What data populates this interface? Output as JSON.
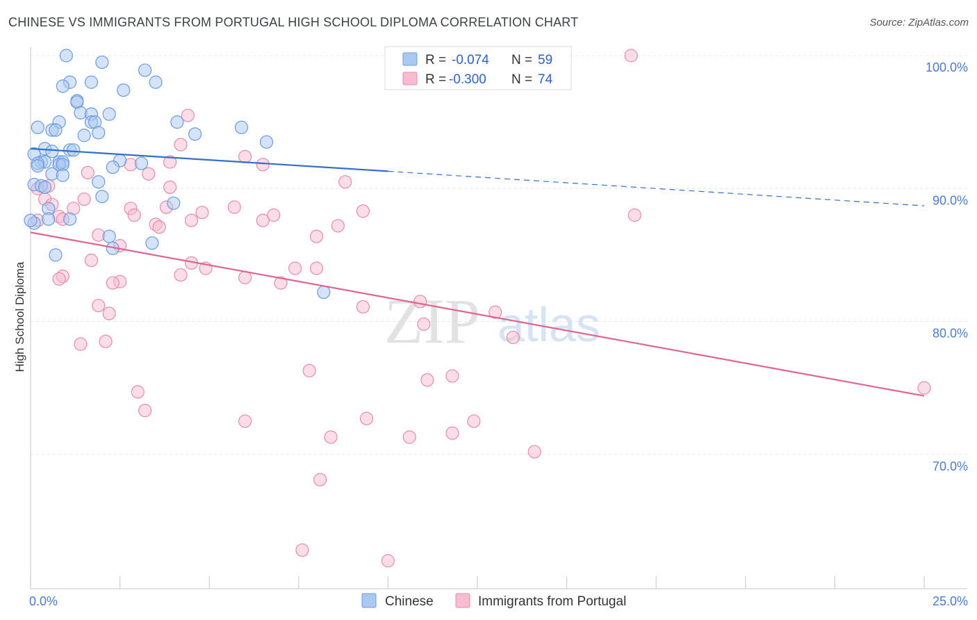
{
  "title": "CHINESE VS IMMIGRANTS FROM PORTUGAL HIGH SCHOOL DIPLOMA CORRELATION CHART",
  "source": "Source: ZipAtlas.com",
  "watermark": {
    "zip": "ZIP",
    "atlas": "atlas"
  },
  "colors": {
    "chinese_fill": "#aac8f0",
    "chinese_stroke": "#6a9be0",
    "chinese_line": "#2f6fce",
    "portugal_fill": "#f7bcd0",
    "portugal_stroke": "#e98aab",
    "portugal_line": "#e0648f"
  },
  "legend": {
    "r_label": "R =",
    "n_label": "N =",
    "series": [
      {
        "r": "-0.074",
        "n": "59"
      },
      {
        "r": "-0.300",
        "n": "74"
      }
    ]
  },
  "chart_data": {
    "type": "scatter",
    "ylabel": "High School Diploma",
    "xlim": [
      0,
      25
    ],
    "ylim": [
      60,
      101.5
    ],
    "x_tick_labels": [
      {
        "value": 0,
        "label": "0.0%"
      },
      {
        "value": 25,
        "label": "25.0%"
      }
    ],
    "y_tick_labels": [
      {
        "value": 100,
        "label": "100.0%"
      },
      {
        "value": 90,
        "label": "90.0%"
      },
      {
        "value": 80,
        "label": "80.0%"
      },
      {
        "value": 70,
        "label": "70.0%"
      }
    ],
    "grid": true,
    "legend_position": "top-center",
    "series": [
      {
        "name": "Chinese",
        "points": [
          [
            1.0,
            100.0
          ],
          [
            2.0,
            99.5
          ],
          [
            3.2,
            98.9
          ],
          [
            1.1,
            98.0
          ],
          [
            1.7,
            98.0
          ],
          [
            3.5,
            98.0
          ],
          [
            0.9,
            97.7
          ],
          [
            2.6,
            97.4
          ],
          [
            1.3,
            96.6
          ],
          [
            1.3,
            96.5
          ],
          [
            1.4,
            95.7
          ],
          [
            2.2,
            95.6
          ],
          [
            1.7,
            95.6
          ],
          [
            1.7,
            95.0
          ],
          [
            1.8,
            95.0
          ],
          [
            0.8,
            95.0
          ],
          [
            4.1,
            95.0
          ],
          [
            0.2,
            94.6
          ],
          [
            5.9,
            94.6
          ],
          [
            0.6,
            94.4
          ],
          [
            0.7,
            94.4
          ],
          [
            1.9,
            94.2
          ],
          [
            4.6,
            94.1
          ],
          [
            1.5,
            94.0
          ],
          [
            6.6,
            93.5
          ],
          [
            0.4,
            93.0
          ],
          [
            0.6,
            92.8
          ],
          [
            1.1,
            92.9
          ],
          [
            1.2,
            92.9
          ],
          [
            0.1,
            92.6
          ],
          [
            2.5,
            92.1
          ],
          [
            0.3,
            92.0
          ],
          [
            0.4,
            92.0
          ],
          [
            0.8,
            92.0
          ],
          [
            0.9,
            92.0
          ],
          [
            0.2,
            91.9
          ],
          [
            0.8,
            91.8
          ],
          [
            0.9,
            91.8
          ],
          [
            3.1,
            91.9
          ],
          [
            0.2,
            91.7
          ],
          [
            2.3,
            91.6
          ],
          [
            0.6,
            91.1
          ],
          [
            0.9,
            91.0
          ],
          [
            0.1,
            90.3
          ],
          [
            0.3,
            90.2
          ],
          [
            1.9,
            90.5
          ],
          [
            0.4,
            90.1
          ],
          [
            2.0,
            89.4
          ],
          [
            4.0,
            88.9
          ],
          [
            0.5,
            88.5
          ],
          [
            0.5,
            87.7
          ],
          [
            1.1,
            87.7
          ],
          [
            0.1,
            87.4
          ],
          [
            2.2,
            86.4
          ],
          [
            3.4,
            85.9
          ],
          [
            2.3,
            85.5
          ],
          [
            0.7,
            85.0
          ],
          [
            8.2,
            82.2
          ],
          [
            0.0,
            87.6
          ]
        ]
      },
      {
        "name": "Immigrants from Portugal",
        "points": [
          [
            14.0,
            100.0
          ],
          [
            16.8,
            100.0
          ],
          [
            4.4,
            95.5
          ],
          [
            4.2,
            93.3
          ],
          [
            6.0,
            92.4
          ],
          [
            3.9,
            92.0
          ],
          [
            6.5,
            91.8
          ],
          [
            2.8,
            91.8
          ],
          [
            1.6,
            91.2
          ],
          [
            3.3,
            91.1
          ],
          [
            8.8,
            90.5
          ],
          [
            0.5,
            90.2
          ],
          [
            3.9,
            90.1
          ],
          [
            0.2,
            90.0
          ],
          [
            0.4,
            89.2
          ],
          [
            1.5,
            89.2
          ],
          [
            0.6,
            88.8
          ],
          [
            2.8,
            88.5
          ],
          [
            3.8,
            88.6
          ],
          [
            5.7,
            88.6
          ],
          [
            1.2,
            88.5
          ],
          [
            4.8,
            88.2
          ],
          [
            9.3,
            88.3
          ],
          [
            2.9,
            88.0
          ],
          [
            6.8,
            88.0
          ],
          [
            16.9,
            88.0
          ],
          [
            0.8,
            87.9
          ],
          [
            0.9,
            87.7
          ],
          [
            4.5,
            87.6
          ],
          [
            6.5,
            87.6
          ],
          [
            0.2,
            87.6
          ],
          [
            3.5,
            87.3
          ],
          [
            3.6,
            87.1
          ],
          [
            8.6,
            87.2
          ],
          [
            1.9,
            86.5
          ],
          [
            8.0,
            86.4
          ],
          [
            2.5,
            85.7
          ],
          [
            1.7,
            84.6
          ],
          [
            4.5,
            84.4
          ],
          [
            7.4,
            84.0
          ],
          [
            4.9,
            84.0
          ],
          [
            8.0,
            84.0
          ],
          [
            4.2,
            83.5
          ],
          [
            0.9,
            83.4
          ],
          [
            0.8,
            83.2
          ],
          [
            6.0,
            83.3
          ],
          [
            2.5,
            83.0
          ],
          [
            2.3,
            82.9
          ],
          [
            7.0,
            82.9
          ],
          [
            10.9,
            81.5
          ],
          [
            1.9,
            81.2
          ],
          [
            9.3,
            81.1
          ],
          [
            13.0,
            80.7
          ],
          [
            2.2,
            80.6
          ],
          [
            11.0,
            79.8
          ],
          [
            13.5,
            78.8
          ],
          [
            2.1,
            78.5
          ],
          [
            1.4,
            78.3
          ],
          [
            7.8,
            76.3
          ],
          [
            11.8,
            75.9
          ],
          [
            11.1,
            75.6
          ],
          [
            3.0,
            74.7
          ],
          [
            25.0,
            75.0
          ],
          [
            3.2,
            73.3
          ],
          [
            6.0,
            72.5
          ],
          [
            9.4,
            72.7
          ],
          [
            12.4,
            72.5
          ],
          [
            8.4,
            71.3
          ],
          [
            10.6,
            71.3
          ],
          [
            11.8,
            71.6
          ],
          [
            14.1,
            70.2
          ],
          [
            8.1,
            68.1
          ],
          [
            7.6,
            62.8
          ],
          [
            10.0,
            62.0
          ]
        ]
      }
    ],
    "trend_lines": [
      {
        "series": "Chinese",
        "solid": [
          [
            0,
            93.0
          ],
          [
            10,
            91.3
          ]
        ],
        "dashed": [
          [
            10,
            91.3
          ],
          [
            25,
            88.7
          ]
        ]
      },
      {
        "series": "Immigrants from Portugal",
        "solid": [
          [
            0,
            86.7
          ],
          [
            25,
            74.4
          ]
        ]
      }
    ]
  }
}
